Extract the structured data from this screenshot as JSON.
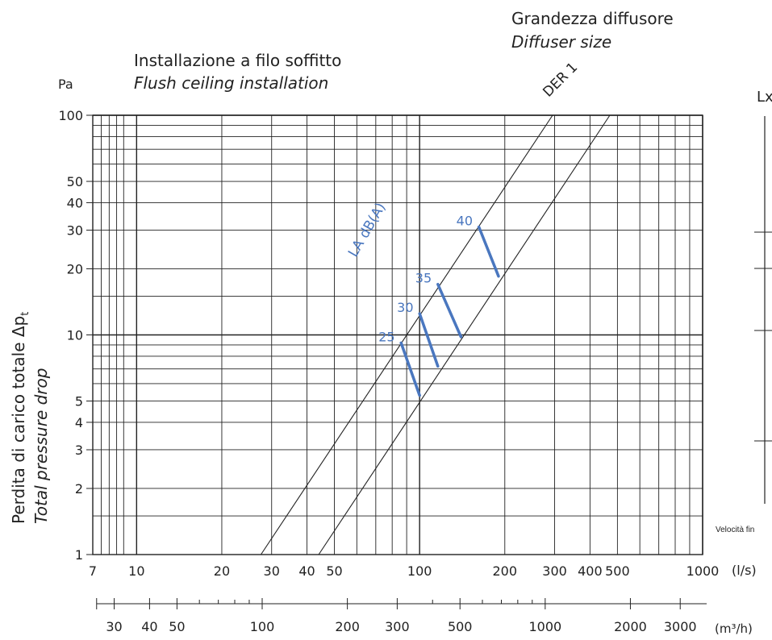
{
  "chart_data": {
    "type": "line",
    "title_it": "Installazione a filo soffitto",
    "title_en": "Flush ceiling installation",
    "size_label_it": "Grandezza diffusore",
    "size_label_en": "Diffuser size",
    "ylabel_it": "Perdita di carico totale  Δp",
    "ylabel_unit_mark": "t",
    "ylabel_en": "Total pressure drop",
    "y_unit": "Pa",
    "x_unit_ls": "(l/s)",
    "x_unit_m3h": "(m³/h)",
    "xlim_ls": [
      7,
      1000
    ],
    "ylim_pa": [
      1,
      100
    ],
    "x_scale": "log",
    "y_scale": "log",
    "grid": true,
    "x_ticks_ls": [
      "7",
      "10",
      "20",
      "30",
      "40",
      "50",
      "100",
      "200",
      "300",
      "400",
      "500",
      "1000"
    ],
    "x_ticks_ls_values": [
      7,
      10,
      20,
      30,
      40,
      50,
      100,
      200,
      300,
      400,
      500,
      1000
    ],
    "x_ticks_m3h": [
      "30",
      "40",
      "50",
      "100",
      "200",
      "300",
      "500",
      "1000",
      "2000",
      "3000"
    ],
    "x_ticks_m3h_values": [
      30,
      40,
      50,
      100,
      200,
      300,
      500,
      1000,
      2000,
      3000
    ],
    "y_ticks": [
      "1",
      "2",
      "3",
      "4",
      "5",
      "10",
      "20",
      "30",
      "40",
      "50",
      "100"
    ],
    "y_ticks_values": [
      1,
      2,
      3,
      4,
      5,
      10,
      20,
      30,
      40,
      50,
      100
    ],
    "series": [
      {
        "name": "DER 1",
        "x": [
          27.5,
          295
        ],
        "y": [
          1,
          100
        ]
      },
      {
        "name": "",
        "x": [
          44,
          470
        ],
        "y": [
          1,
          100
        ]
      }
    ],
    "noise_label": "LA dB(A)",
    "noise_lines": [
      {
        "label": "25",
        "x": [
          86,
          100
        ],
        "y": [
          9.2,
          5.3
        ]
      },
      {
        "label": "30",
        "x": [
          100,
          116
        ],
        "y": [
          12.5,
          7.2
        ]
      },
      {
        "label": "35",
        "x": [
          116,
          140
        ],
        "y": [
          17,
          9.8
        ]
      },
      {
        "label": "40",
        "x": [
          162,
          190
        ],
        "y": [
          31,
          18.5
        ]
      }
    ],
    "side_panel_label": "Lx",
    "side_panel_caption": "Velocità fin"
  }
}
